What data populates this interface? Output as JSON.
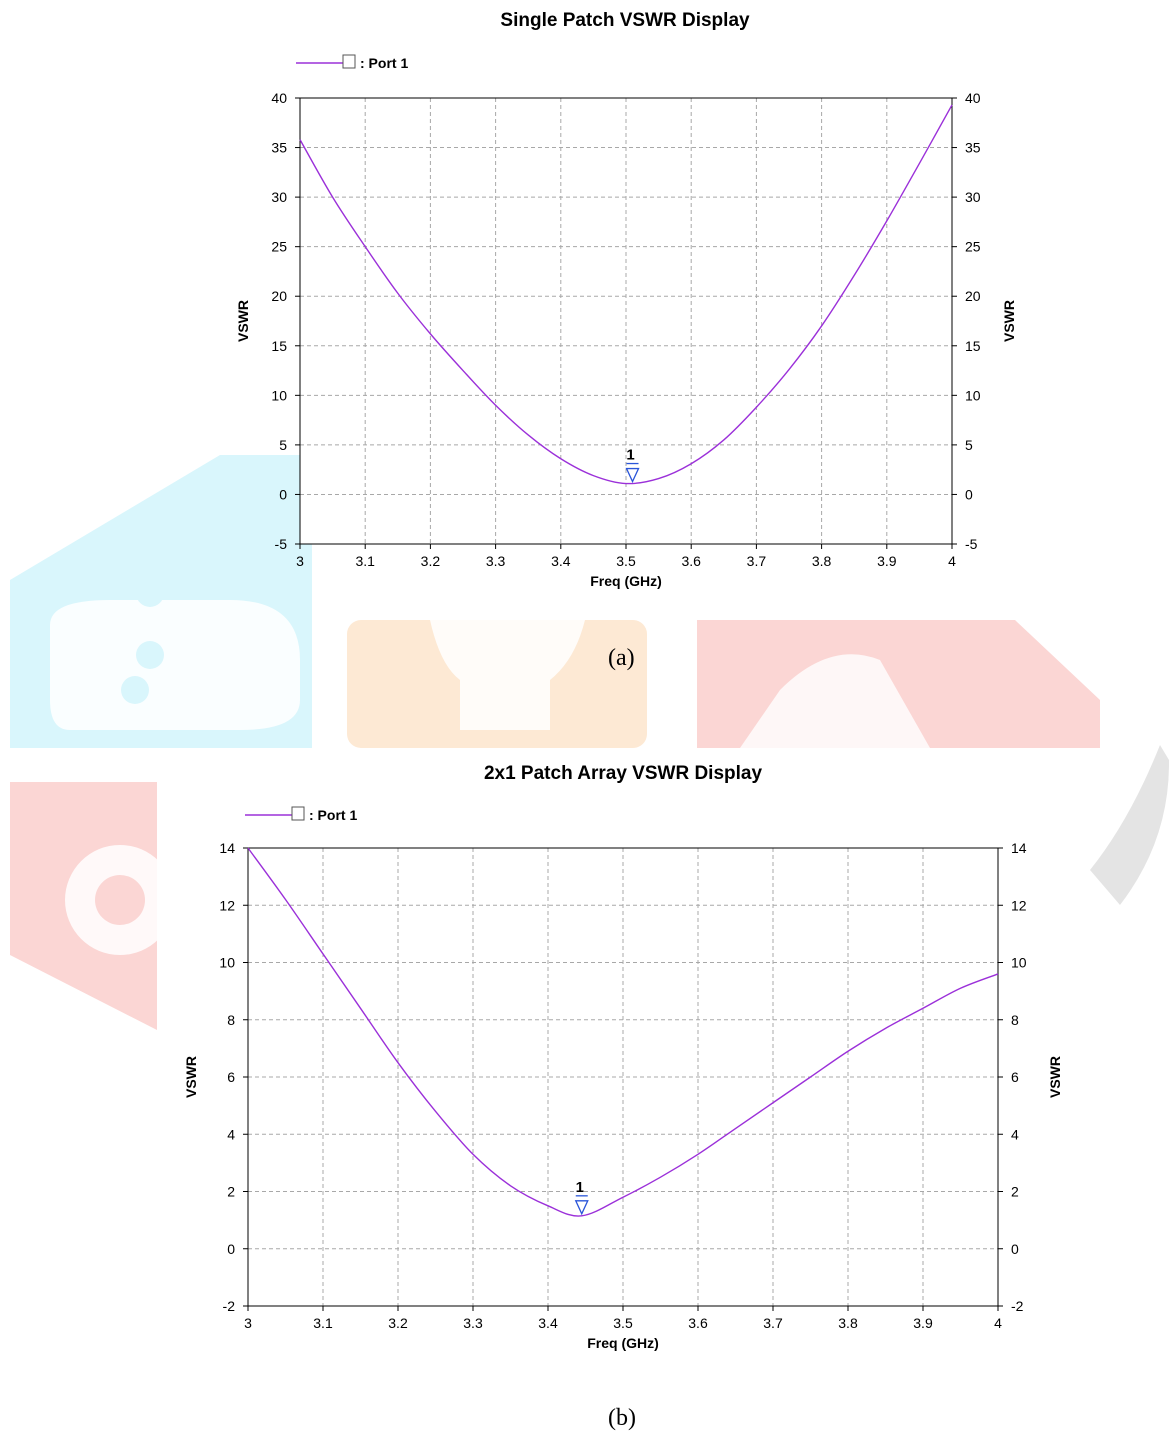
{
  "colors": {
    "trace": "#9b30d9",
    "marker": "#2a55d9",
    "grid": "#a8a8a8",
    "axis": "#000000",
    "watermark_cyan": "#d9f6fc",
    "watermark_orange": "#fde9d4",
    "watermark_red": "#fbd6d4",
    "watermark_gray": "#e4e4e4"
  },
  "captions": {
    "a": "(a)",
    "b": "(b)"
  },
  "chart_data": [
    {
      "type": "line",
      "title": "Single Patch VSWR Display",
      "xlabel": "Freq (GHz)",
      "ylabel": "VSWR",
      "ylabel_right": "VSWR",
      "xlim": [
        3,
        4
      ],
      "ylim": [
        -5,
        40
      ],
      "xticks": [
        "3",
        "3.1",
        "3.2",
        "3.3",
        "3.4",
        "3.5",
        "3.6",
        "3.7",
        "3.8",
        "3.9",
        "4"
      ],
      "yticks": [
        "-5",
        "0",
        "5",
        "10",
        "15",
        "20",
        "25",
        "30",
        "35",
        "40"
      ],
      "grid": true,
      "legend": {
        "placement": "top-left",
        "label": ": Port 1"
      },
      "series": [
        {
          "name": "Port 1",
          "x": [
            3.0,
            3.05,
            3.1,
            3.15,
            3.2,
            3.25,
            3.3,
            3.35,
            3.4,
            3.45,
            3.5,
            3.55,
            3.6,
            3.65,
            3.7,
            3.75,
            3.8,
            3.85,
            3.9,
            3.95,
            4.0
          ],
          "y": [
            35.8,
            30.0,
            25.0,
            20.3,
            16.2,
            12.5,
            9.0,
            6.0,
            3.6,
            1.9,
            1.1,
            1.6,
            3.1,
            5.5,
            8.8,
            12.6,
            17.0,
            22.1,
            27.6,
            33.4,
            39.3
          ]
        }
      ],
      "markers": [
        {
          "label": "1",
          "x": 3.51,
          "y": 1.1
        }
      ]
    },
    {
      "type": "line",
      "title": "2x1 Patch Array VSWR Display",
      "xlabel": "Freq (GHz)",
      "ylabel": "VSWR",
      "ylabel_right": "VSWR",
      "xlim": [
        3,
        4
      ],
      "ylim": [
        -2,
        14
      ],
      "xticks": [
        "3",
        "3.1",
        "3.2",
        "3.3",
        "3.4",
        "3.5",
        "3.6",
        "3.7",
        "3.8",
        "3.9",
        "4"
      ],
      "yticks": [
        "-2",
        "0",
        "2",
        "4",
        "6",
        "8",
        "10",
        "12",
        "14"
      ],
      "grid": true,
      "legend": {
        "placement": "top-left",
        "label": ": Port 1"
      },
      "series": [
        {
          "name": "Port 1",
          "x": [
            3.0,
            3.05,
            3.1,
            3.15,
            3.2,
            3.25,
            3.3,
            3.35,
            3.4,
            3.445,
            3.5,
            3.55,
            3.6,
            3.65,
            3.7,
            3.75,
            3.8,
            3.85,
            3.9,
            3.95,
            4.0
          ],
          "y": [
            14.0,
            12.2,
            10.3,
            8.4,
            6.5,
            4.8,
            3.3,
            2.2,
            1.5,
            1.15,
            1.8,
            2.5,
            3.3,
            4.2,
            5.1,
            6.0,
            6.9,
            7.7,
            8.4,
            9.1,
            9.6
          ]
        }
      ],
      "markers": [
        {
          "label": "1",
          "x": 3.445,
          "y": 1.15
        }
      ]
    }
  ]
}
